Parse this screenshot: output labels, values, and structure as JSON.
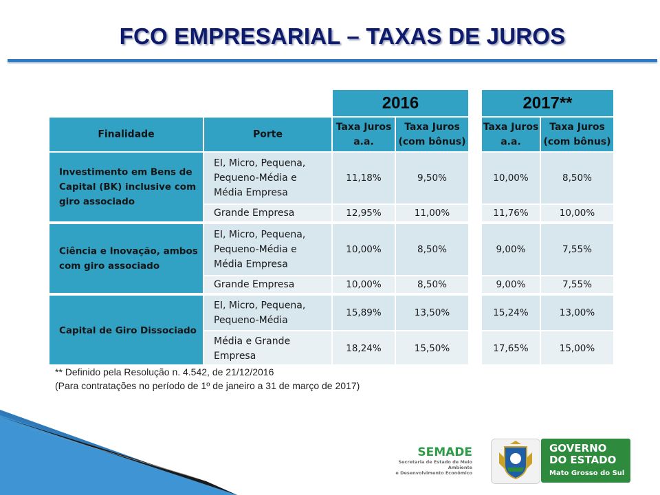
{
  "title": "FCO EMPRESARIAL – TAXAS DE JUROS",
  "colors": {
    "title": "#0e1a6c",
    "header": "#31a1c4",
    "row_light": "#d8e6ee",
    "row_alt": "#e9f0f4"
  },
  "table": {
    "years": [
      "2016",
      "2017**"
    ],
    "headers": {
      "finalidade": "Finalidade",
      "porte": "Porte",
      "taxa_aa": [
        "Taxa Juros",
        "a.a."
      ],
      "taxa_bonus": [
        "Taxa Juros",
        "(com bônus)"
      ]
    },
    "groups": [
      {
        "finalidade": [
          "Investimento em Bens de",
          "Capital (BK) inclusive com",
          "giro associado"
        ],
        "rows": [
          {
            "porte": [
              "EI, Micro, Pequena,",
              "Pequeno-Média e",
              "Média Empresa"
            ],
            "v2016_aa": "11,18%",
            "v2016_bonus": "9,50%",
            "v2017_aa": "10,00%",
            "v2017_bonus": "8,50%"
          },
          {
            "porte": [
              "Grande Empresa"
            ],
            "v2016_aa": "12,95%",
            "v2016_bonus": "11,00%",
            "v2017_aa": "11,76%",
            "v2017_bonus": "10,00%"
          }
        ]
      },
      {
        "finalidade": [
          "Ciência e Inovação, ambos",
          "com giro associado"
        ],
        "rows": [
          {
            "porte": [
              "EI, Micro, Pequena,",
              "Pequeno-Média e",
              "Média Empresa"
            ],
            "v2016_aa": "10,00%",
            "v2016_bonus": "8,50%",
            "v2017_aa": "9,00%",
            "v2017_bonus": "7,55%"
          },
          {
            "porte": [
              "Grande Empresa"
            ],
            "v2016_aa": "10,00%",
            "v2016_bonus": "8,50%",
            "v2017_aa": "9,00%",
            "v2017_bonus": "7,55%"
          }
        ]
      },
      {
        "finalidade": [
          "Capital de Giro Dissociado"
        ],
        "rows": [
          {
            "porte": [
              "EI, Micro, Pequena,",
              "Pequeno-Média"
            ],
            "v2016_aa": "15,89%",
            "v2016_bonus": "13,50%",
            "v2017_aa": "15,24%",
            "v2017_bonus": "13,00%"
          },
          {
            "porte": [
              "Média e Grande",
              "Empresa"
            ],
            "v2016_aa": "18,24%",
            "v2016_bonus": "15,50%",
            "v2017_aa": "17,65%",
            "v2017_bonus": "15,00%"
          }
        ]
      }
    ]
  },
  "chart_data": {
    "type": "table",
    "title": "FCO EMPRESARIAL – TAXAS DE JUROS",
    "columns": [
      "Finalidade",
      "Porte",
      "2016 Taxa Juros a.a.",
      "2016 Taxa Juros (com bônus)",
      "2017** Taxa Juros a.a.",
      "2017** Taxa Juros (com bônus)"
    ],
    "rows": [
      [
        "Investimento em Bens de Capital (BK) inclusive com giro associado",
        "EI, Micro, Pequena, Pequeno-Média e Média Empresa",
        "11,18%",
        "9,50%",
        "10,00%",
        "8,50%"
      ],
      [
        "Investimento em Bens de Capital (BK) inclusive com giro associado",
        "Grande Empresa",
        "12,95%",
        "11,00%",
        "11,76%",
        "10,00%"
      ],
      [
        "Ciência e Inovação, ambos com giro associado",
        "EI, Micro, Pequena, Pequeno-Média e Média Empresa",
        "10,00%",
        "8,50%",
        "9,00%",
        "7,55%"
      ],
      [
        "Ciência e Inovação, ambos com giro associado",
        "Grande Empresa",
        "10,00%",
        "8,50%",
        "9,00%",
        "7,55%"
      ],
      [
        "Capital de Giro Dissociado",
        "EI, Micro, Pequena, Pequeno-Média",
        "15,89%",
        "13,50%",
        "15,24%",
        "13,00%"
      ],
      [
        "Capital de Giro Dissociado",
        "Média e Grande Empresa",
        "18,24%",
        "15,50%",
        "17,65%",
        "15,00%"
      ]
    ]
  },
  "notes": [
    "** Definido pela Resolução n. 4.542, de 21/12/2016",
    "(Para contratações no período de 1º de janeiro a 31 de março de 2017)"
  ],
  "logos": {
    "semade_name": "SEMADE",
    "semade_sub": [
      "Secretaria de Estado de Meio Ambiente",
      "e Desenvolvimento Econômico"
    ],
    "gov": [
      "GOVERNO",
      "DO ESTADO",
      "Mato Grosso do Sul"
    ]
  }
}
